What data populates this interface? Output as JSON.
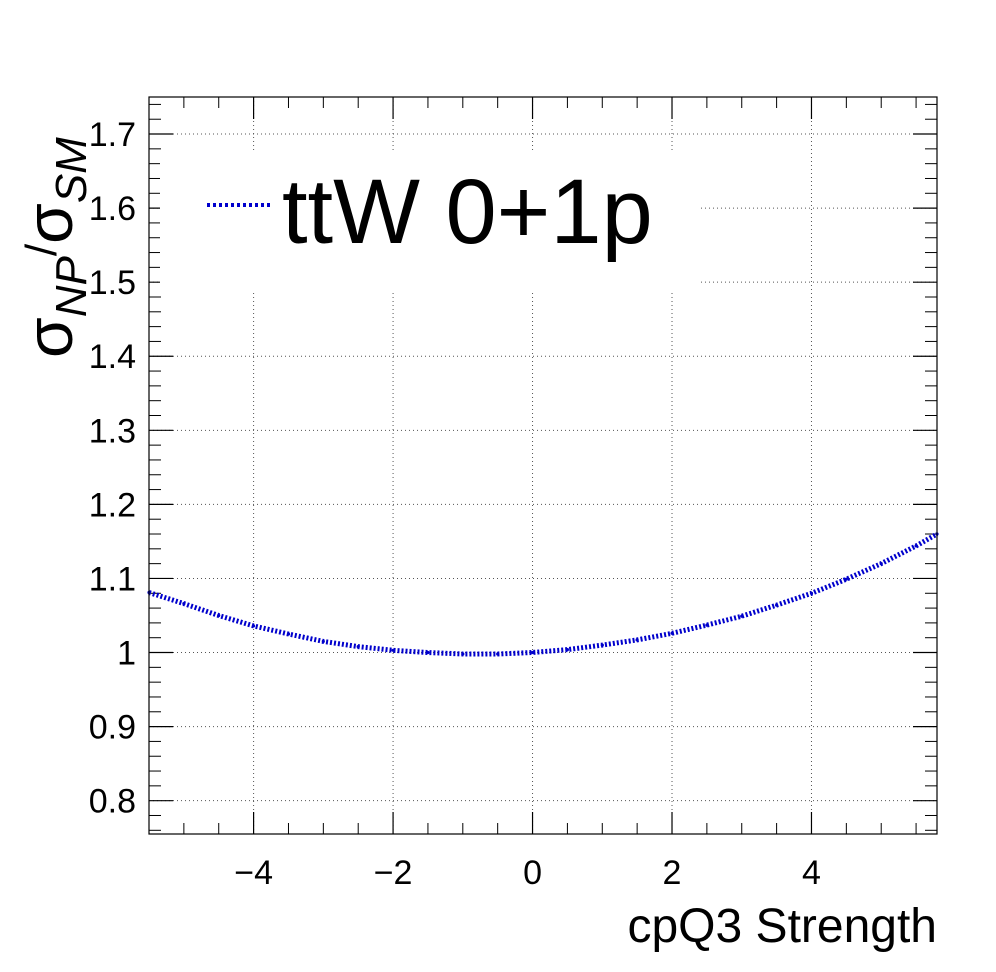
{
  "chart_data": {
    "type": "line",
    "title": "",
    "xlabel": "cpQ3 Strength",
    "ylabel": {
      "symbol": "σ",
      "numerator_sub": "NP",
      "slash": "/",
      "denominator_sub": "SM"
    },
    "xlim": [
      -5.5,
      5.8
    ],
    "ylim": [
      0.755,
      1.75
    ],
    "x_ticks": [
      -4,
      -2,
      0,
      2,
      4
    ],
    "x_tick_labels": [
      "−4",
      "−2",
      "0",
      "2",
      "4"
    ],
    "y_ticks": [
      0.8,
      0.9,
      1.0,
      1.1,
      1.2,
      1.3,
      1.4,
      1.5,
      1.6,
      1.7
    ],
    "y_tick_labels": [
      "0.8",
      "0.9",
      "1",
      "1.1",
      "1.2",
      "1.3",
      "1.4",
      "1.5",
      "1.6",
      "1.7"
    ],
    "grid": true,
    "legend_position": "top-left",
    "series": [
      {
        "name": "ttW 0+1p",
        "color": "#0000cc",
        "style": "dotted",
        "x": [
          -5.5,
          -5.0,
          -4.5,
          -4.0,
          -3.5,
          -3.0,
          -2.5,
          -2.0,
          -1.5,
          -1.0,
          -0.5,
          0.0,
          0.5,
          1.0,
          1.5,
          2.0,
          2.5,
          3.0,
          3.5,
          4.0,
          4.5,
          5.0,
          5.5,
          5.8
        ],
        "y": [
          1.081,
          1.066,
          1.05,
          1.036,
          1.025,
          1.015,
          1.008,
          1.003,
          1.0,
          0.998,
          0.998,
          1.0,
          1.004,
          1.01,
          1.017,
          1.026,
          1.037,
          1.049,
          1.064,
          1.08,
          1.099,
          1.12,
          1.144,
          1.16
        ]
      }
    ]
  }
}
